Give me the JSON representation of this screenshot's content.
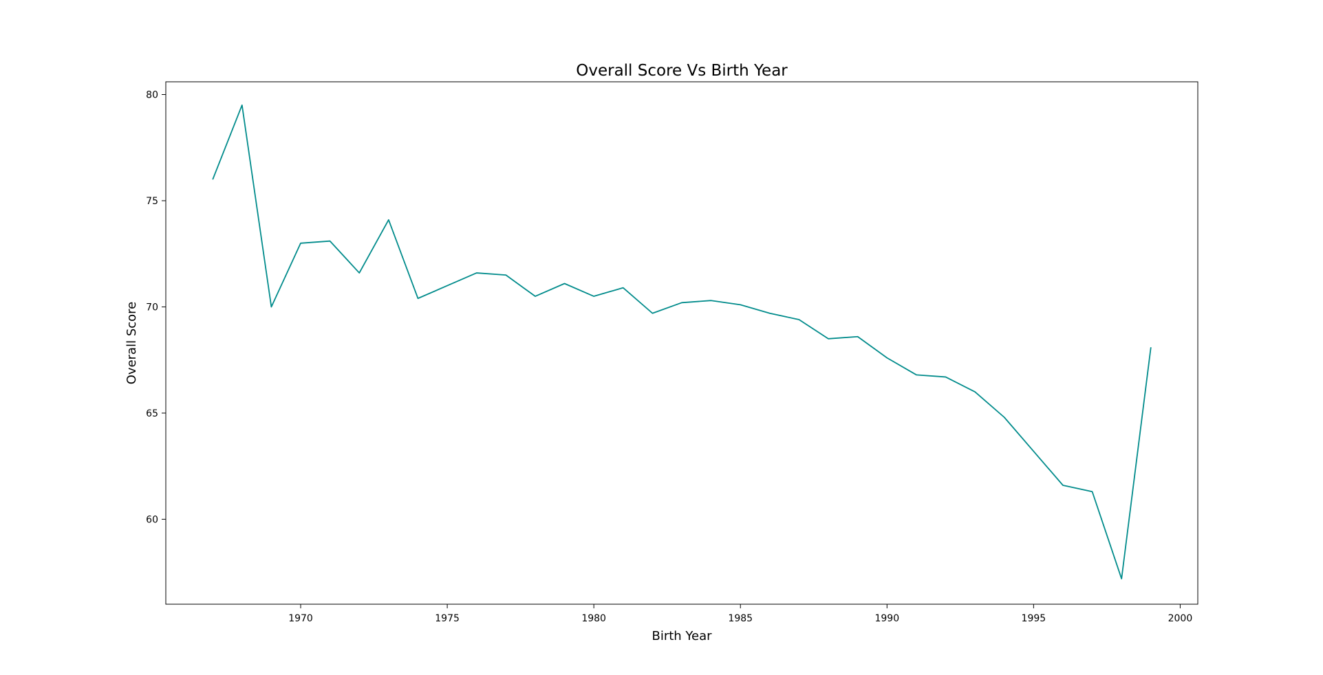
{
  "chart_data": {
    "type": "line",
    "title": "Overall Score Vs Birth Year",
    "xlabel": "Birth Year",
    "ylabel": "Overall Score",
    "xlim": [
      1965.4,
      2000.6
    ],
    "ylim": [
      56.0,
      80.6
    ],
    "xticks": [
      1970,
      1975,
      1980,
      1985,
      1990,
      1995,
      2000
    ],
    "yticks": [
      60,
      65,
      70,
      75,
      80
    ],
    "grid": false,
    "legend": "none",
    "series": [
      {
        "color": "#008b8b",
        "x": [
          1967,
          1968,
          1969,
          1970,
          1971,
          1972,
          1973,
          1974,
          1975,
          1976,
          1977,
          1978,
          1979,
          1980,
          1981,
          1982,
          1983,
          1984,
          1985,
          1986,
          1987,
          1988,
          1989,
          1990,
          1991,
          1992,
          1993,
          1994,
          1995,
          1996,
          1997,
          1998,
          1999
        ],
        "y": [
          76.0,
          79.5,
          70.0,
          73.0,
          73.1,
          71.6,
          74.1,
          70.4,
          71.0,
          71.6,
          71.5,
          70.5,
          71.1,
          70.5,
          70.9,
          69.7,
          70.2,
          70.3,
          70.1,
          69.7,
          69.4,
          68.5,
          68.6,
          67.6,
          66.8,
          66.7,
          66.0,
          64.8,
          63.2,
          61.6,
          61.3,
          57.2,
          68.1
        ]
      }
    ]
  }
}
